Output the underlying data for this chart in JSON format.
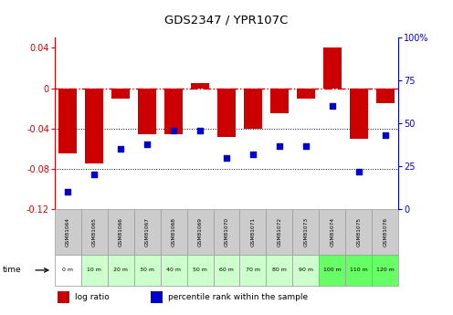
{
  "title": "GDS2347 / YPR107C",
  "samples": [
    "GSM81064",
    "GSM81065",
    "GSM81066",
    "GSM81067",
    "GSM81068",
    "GSM81069",
    "GSM81070",
    "GSM81071",
    "GSM81072",
    "GSM81073",
    "GSM81074",
    "GSM81075",
    "GSM81076"
  ],
  "time_labels": [
    "0 m",
    "10 m",
    "20 m",
    "30 m",
    "40 m",
    "50 m",
    "60 m",
    "70 m",
    "80 m",
    "90 m",
    "100 m",
    "110 m",
    "120 m"
  ],
  "log_ratio": [
    -0.065,
    -0.075,
    -0.01,
    -0.046,
    -0.046,
    0.005,
    -0.048,
    -0.04,
    -0.025,
    -0.01,
    0.04,
    -0.05,
    -0.015
  ],
  "percentile_rank": [
    10,
    20,
    35,
    38,
    46,
    46,
    30,
    32,
    37,
    37,
    60,
    22,
    43
  ],
  "ylim_left": [
    -0.12,
    0.05
  ],
  "ylim_right": [
    0,
    100
  ],
  "yticks_left": [
    0.04,
    0,
    -0.04,
    -0.08,
    -0.12
  ],
  "yticks_right": [
    100,
    75,
    50,
    25,
    0
  ],
  "bar_color": "#cc0000",
  "dot_color": "#0000cc",
  "zero_line_color": "#cc0000",
  "grid_color": "#000000",
  "background_color": "#ffffff",
  "sample_bg": "#cccccc",
  "time_bg_colors": [
    "#ffffff",
    "#ccffcc",
    "#ccffcc",
    "#ccffcc",
    "#ccffcc",
    "#ccffcc",
    "#ccffcc",
    "#ccffcc",
    "#ccffcc",
    "#ccffcc",
    "#66ff66",
    "#66ff66",
    "#66ff66"
  ],
  "bar_width": 0.7
}
